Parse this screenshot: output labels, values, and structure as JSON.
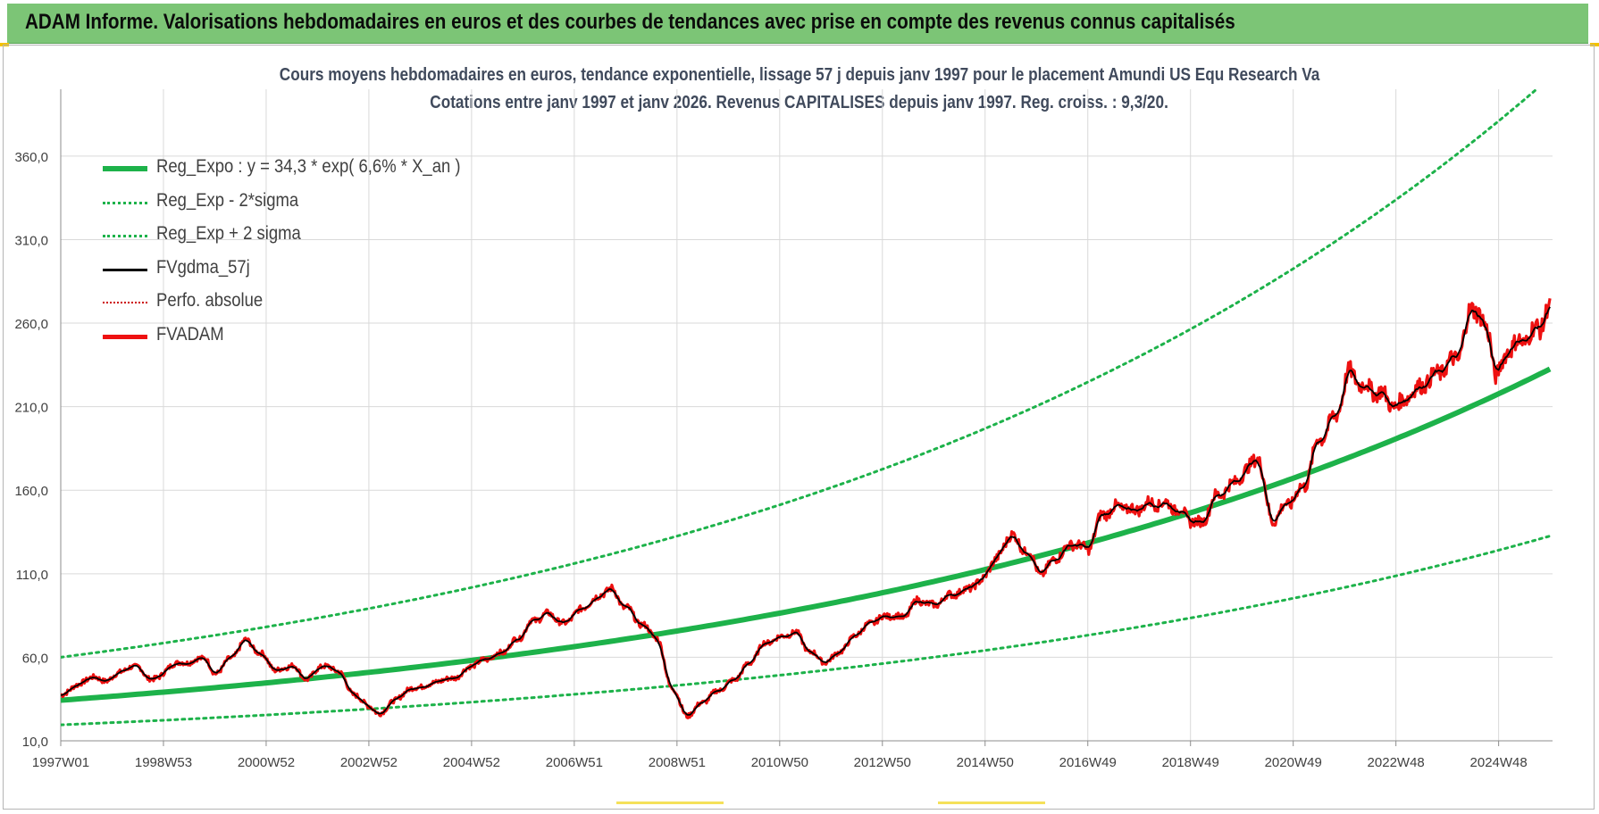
{
  "header": {
    "banner_title": "ADAM Informe. Valorisations hebdomadaires en euros et des courbes de tendances avec prise en compte des revenus connus capitalisés"
  },
  "colors": {
    "banner_bg": "#7cc576",
    "reg_expo": "#1db24a",
    "sigma_bands": "#1db24a",
    "fvgdma": "#000000",
    "fvadam": "#ee1111",
    "perfo": "#cc0000",
    "grid": "#d9d9d9"
  },
  "chart_data": {
    "type": "line",
    "title_line1": "Cours moyens hebdomadaires en euros, tendance exponentielle, lissage 57 j depuis janv 1997  pour le placement Amundi US Equ Research Va",
    "title_line2": "Cotations entre janv 1997 et janv 2026. Revenus CAPITALISES depuis janv 1997. Reg. croiss. : 9,3/20.",
    "xlabel": "",
    "ylabel": "",
    "ylim": [
      10,
      400
    ],
    "x_range_years": [
      1997.0,
      2026.05
    ],
    "y_ticks": [
      "10,0",
      "60,0",
      "110,0",
      "160,0",
      "210,0",
      "260,0",
      "310,0",
      "360,0"
    ],
    "y_tick_values": [
      10,
      60,
      110,
      160,
      210,
      260,
      310,
      360
    ],
    "x_ticks": [
      {
        "label": "1997W01",
        "year": 1997.0
      },
      {
        "label": "1998W53",
        "year": 1999.0
      },
      {
        "label": "2000W52",
        "year": 2001.0
      },
      {
        "label": "2002W52",
        "year": 2003.0
      },
      {
        "label": "2004W52",
        "year": 2005.0
      },
      {
        "label": "2006W51",
        "year": 2007.0
      },
      {
        "label": "2008W51",
        "year": 2009.0
      },
      {
        "label": "2010W50",
        "year": 2011.0
      },
      {
        "label": "2012W50",
        "year": 2013.0
      },
      {
        "label": "2014W50",
        "year": 2015.0
      },
      {
        "label": "2016W49",
        "year": 2017.0
      },
      {
        "label": "2018W49",
        "year": 2019.0
      },
      {
        "label": "2020W49",
        "year": 2021.0
      },
      {
        "label": "2022W48",
        "year": 2023.0
      },
      {
        "label": "2024W48",
        "year": 2025.0
      }
    ],
    "legend_position": "top-left",
    "grid": true,
    "series": [
      {
        "name": "Reg_Expo : y = 34,3 * exp( 6,6% *  X_an )",
        "style": "solid-thick",
        "color": "#1db24a",
        "formula": {
          "a": 34.3,
          "rate": 0.066,
          "factor": 1.0
        }
      },
      {
        "name": "Reg_Exp - 2*sigma",
        "style": "dotted",
        "color": "#1db24a",
        "formula": {
          "a": 34.3,
          "rate": 0.066,
          "factor": 0.57
        }
      },
      {
        "name": "Reg_Exp + 2 sigma",
        "style": "dotted",
        "color": "#1db24a",
        "formula": {
          "a": 34.3,
          "rate": 0.066,
          "factor": 1.75
        }
      },
      {
        "name": "FVgdma_57j",
        "style": "solid",
        "color": "#000000"
      },
      {
        "name": "Perfo. absolue",
        "style": "dotted-thin",
        "color": "#cc0000"
      },
      {
        "name": "FVADAM",
        "style": "solid-thick",
        "color": "#ee1111",
        "x": [
          1997.0,
          1997.3,
          1997.6,
          1997.9,
          1998.2,
          1998.5,
          1998.7,
          1998.9,
          1999.2,
          1999.5,
          1999.8,
          2000.0,
          2000.3,
          2000.6,
          2000.9,
          2001.2,
          2001.5,
          2001.8,
          2002.1,
          2002.4,
          2002.7,
          2003.0,
          2003.2,
          2003.5,
          2003.8,
          2004.1,
          2004.4,
          2004.7,
          2005.0,
          2005.3,
          2005.6,
          2005.9,
          2006.2,
          2006.5,
          2006.8,
          2007.1,
          2007.4,
          2007.7,
          2008.0,
          2008.3,
          2008.6,
          2008.9,
          2009.2,
          2009.5,
          2009.8,
          2010.1,
          2010.4,
          2010.7,
          2011.0,
          2011.3,
          2011.6,
          2011.9,
          2012.2,
          2012.5,
          2012.8,
          2013.1,
          2013.4,
          2013.7,
          2014.0,
          2014.3,
          2014.6,
          2014.9,
          2015.2,
          2015.5,
          2015.8,
          2016.1,
          2016.4,
          2016.7,
          2017.0,
          2017.3,
          2017.6,
          2017.9,
          2018.2,
          2018.5,
          2018.8,
          2019.0,
          2019.2,
          2019.5,
          2019.8,
          2020.1,
          2020.3,
          2020.6,
          2020.9,
          2021.2,
          2021.5,
          2021.8,
          2022.1,
          2022.4,
          2022.7,
          2023.0,
          2023.3,
          2023.6,
          2023.9,
          2024.2,
          2024.5,
          2024.8,
          2024.95,
          2025.2,
          2025.5,
          2025.8,
          2026.0
        ],
        "values": [
          37,
          43,
          48,
          46,
          52,
          55,
          47,
          48,
          56,
          57,
          60,
          50,
          59,
          70,
          62,
          52,
          55,
          47,
          55,
          52,
          38,
          31,
          26,
          34,
          41,
          43,
          46,
          48,
          55,
          59,
          63,
          71,
          82,
          86,
          80,
          88,
          95,
          101,
          90,
          80,
          72,
          42,
          25,
          33,
          40,
          46,
          56,
          68,
          72,
          75,
          63,
          57,
          64,
          74,
          81,
          85,
          84,
          94,
          91,
          97,
          100,
          105,
          118,
          133,
          124,
          110,
          120,
          128,
          125,
          146,
          150,
          148,
          152,
          152,
          148,
          142,
          140,
          156,
          163,
          172,
          180,
          142,
          152,
          162,
          190,
          203,
          230,
          222,
          218,
          210,
          218,
          225,
          232,
          240,
          270,
          255,
          228,
          245,
          250,
          258,
          270
        ]
      }
    ]
  },
  "legend": [
    {
      "label": "Reg_Expo : y = 34,3 * exp( 6,6% *  X_an )"
    },
    {
      "label": "Reg_Exp - 2*sigma"
    },
    {
      "label": "Reg_Exp + 2 sigma"
    },
    {
      "label": "FVgdma_57j"
    },
    {
      "label": "Perfo. absolue"
    },
    {
      "label": "FVADAM"
    }
  ]
}
